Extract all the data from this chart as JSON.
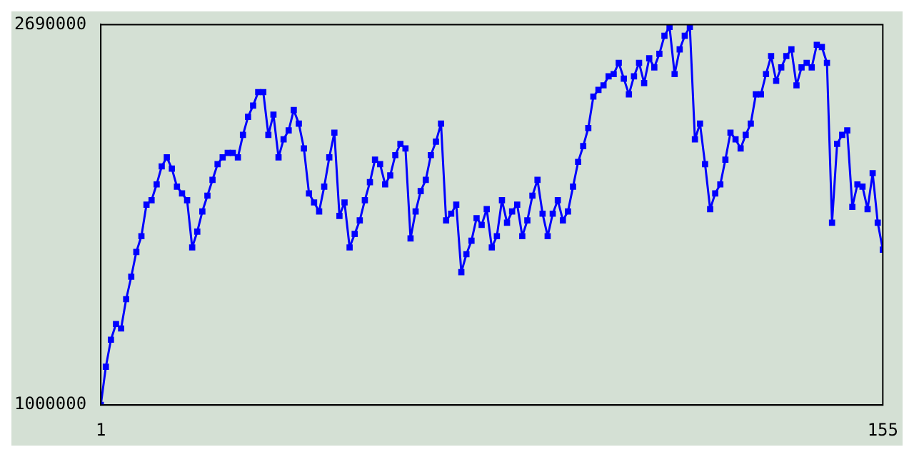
{
  "chart_data": {
    "type": "line",
    "x": [
      1,
      2,
      3,
      4,
      5,
      6,
      7,
      8,
      9,
      10,
      11,
      12,
      13,
      14,
      15,
      16,
      17,
      18,
      19,
      20,
      21,
      22,
      23,
      24,
      25,
      26,
      27,
      28,
      29,
      30,
      31,
      32,
      33,
      34,
      35,
      36,
      37,
      38,
      39,
      40,
      41,
      42,
      43,
      44,
      45,
      46,
      47,
      48,
      49,
      50,
      51,
      52,
      53,
      54,
      55,
      56,
      57,
      58,
      59,
      60,
      61,
      62,
      63,
      64,
      65,
      66,
      67,
      68,
      69,
      70,
      71,
      72,
      73,
      74,
      75,
      76,
      77,
      78,
      79,
      80,
      81,
      82,
      83,
      84,
      85,
      86,
      87,
      88,
      89,
      90,
      91,
      92,
      93,
      94,
      95,
      96,
      97,
      98,
      99,
      100,
      101,
      102,
      103,
      104,
      105,
      106,
      107,
      108,
      109,
      110,
      111,
      112,
      113,
      114,
      115,
      116,
      117,
      118,
      119,
      120,
      121,
      122,
      123,
      124,
      125,
      126,
      127,
      128,
      129,
      130,
      131,
      132,
      133,
      134,
      135,
      136,
      137,
      138,
      139,
      140,
      141,
      142,
      143,
      144,
      145,
      146,
      147,
      148,
      149,
      150,
      151,
      152,
      153,
      154,
      155
    ],
    "series": [
      {
        "color": "#0000ff",
        "values": [
          1000000,
          1170000,
          1290000,
          1360000,
          1340000,
          1470000,
          1570000,
          1680000,
          1750000,
          1890000,
          1910000,
          1980000,
          2060000,
          2100000,
          2050000,
          1970000,
          1940000,
          1910000,
          1700000,
          1770000,
          1860000,
          1930000,
          2000000,
          2070000,
          2100000,
          2120000,
          2120000,
          2100000,
          2200000,
          2280000,
          2330000,
          2390000,
          2390000,
          2200000,
          2290000,
          2100000,
          2180000,
          2220000,
          2310000,
          2250000,
          2140000,
          1940000,
          1900000,
          1860000,
          1970000,
          2100000,
          2210000,
          1840000,
          1900000,
          1700000,
          1760000,
          1820000,
          1910000,
          1990000,
          2090000,
          2070000,
          1980000,
          2020000,
          2110000,
          2160000,
          2140000,
          1740000,
          1860000,
          1950000,
          2000000,
          2110000,
          2170000,
          2250000,
          1820000,
          1850000,
          1890000,
          1590000,
          1670000,
          1730000,
          1830000,
          1800000,
          1870000,
          1700000,
          1750000,
          1910000,
          1810000,
          1860000,
          1890000,
          1750000,
          1820000,
          1930000,
          2000000,
          1850000,
          1750000,
          1850000,
          1910000,
          1820000,
          1860000,
          1970000,
          2080000,
          2150000,
          2230000,
          2370000,
          2400000,
          2420000,
          2460000,
          2470000,
          2520000,
          2450000,
          2380000,
          2460000,
          2520000,
          2430000,
          2540000,
          2500000,
          2560000,
          2640000,
          2680000,
          2470000,
          2580000,
          2640000,
          2680000,
          2180000,
          2250000,
          2070000,
          1870000,
          1940000,
          1980000,
          2090000,
          2210000,
          2180000,
          2140000,
          2200000,
          2250000,
          2380000,
          2380000,
          2470000,
          2550000,
          2440000,
          2500000,
          2550000,
          2580000,
          2420000,
          2500000,
          2520000,
          2500000,
          2600000,
          2590000,
          2520000,
          1810000,
          2160000,
          2200000,
          2220000,
          1880000,
          1980000,
          1970000,
          1870000,
          2030000,
          1810000,
          1690000
        ]
      }
    ],
    "xlim": [
      1,
      155
    ],
    "xticks": [
      1,
      155
    ],
    "ylim": [
      1000000,
      2690000
    ],
    "yticks": [
      1000000,
      2690000
    ],
    "marker": "square",
    "line_style": "solid"
  }
}
